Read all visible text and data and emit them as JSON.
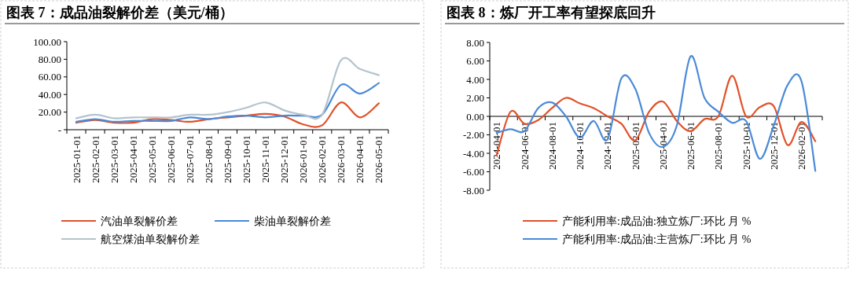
{
  "chart_data": [
    {
      "type": "line",
      "title": "图表 7：成品油裂解价差（美元/桶）",
      "categories": [
        "2025-01-01",
        "2025-02-01",
        "2025-03-01",
        "2025-04-01",
        "2025-05-01",
        "2025-06-01",
        "2025-07-01",
        "2025-08-01",
        "2025-09-01",
        "2025-10-01",
        "2025-11-01",
        "2025-12-01",
        "2026-01-01",
        "2026-02-01",
        "2026-03-01",
        "2026-04-01",
        "2026-05-01"
      ],
      "series": [
        {
          "name": "汽油单裂解价差",
          "color": "#e0522a",
          "values": [
            8,
            11,
            8,
            8,
            12,
            11,
            9,
            12,
            14,
            16,
            18,
            15,
            6,
            5,
            31,
            14,
            30
          ]
        },
        {
          "name": "柴油单裂解价差",
          "color": "#4a8ad8",
          "values": [
            9,
            12,
            9,
            10,
            10,
            10,
            14,
            12,
            15,
            16,
            14,
            16,
            16,
            17,
            51,
            41,
            53
          ]
        },
        {
          "name": "航空煤油单裂解价差",
          "color": "#b4c3cc",
          "values": [
            13,
            17,
            13,
            14,
            14,
            14,
            17,
            17,
            20,
            25,
            31,
            22,
            17,
            17,
            79,
            69,
            62
          ]
        }
      ],
      "ylim": [
        0,
        100
      ],
      "yticks": [
        {
          "value": 0,
          "label": "-"
        },
        {
          "value": 20,
          "label": "20.00"
        },
        {
          "value": 40,
          "label": "40.00"
        },
        {
          "value": 60,
          "label": "60.00"
        },
        {
          "value": 80,
          "label": "80.00"
        },
        {
          "value": 100,
          "label": "100.00"
        }
      ],
      "legend": "bottom",
      "grid": false
    },
    {
      "type": "line",
      "title": "图表 8：炼厂开工率有望探底回升",
      "categories": [
        "2024-04-01",
        null,
        "2024-06-01",
        null,
        "2024-08-01",
        null,
        "2024-10-01",
        null,
        "2024-12-01",
        null,
        "2025-02-01",
        null,
        "2025-04-01",
        null,
        "2025-06-01",
        null,
        "2025-08-01",
        null,
        "2025-10-01",
        null,
        "2025-12-01",
        null,
        "2026-02-01",
        null
      ],
      "series": [
        {
          "name": "产能利用率:成品油:独立炼厂:环比 月 %",
          "color": "#e0522a",
          "values": [
            -4.2,
            0.5,
            -0.8,
            -0.4,
            0.9,
            2.0,
            1.4,
            0.9,
            0.0,
            -0.8,
            -2.6,
            0.5,
            1.6,
            -0.5,
            -1.6,
            -0.3,
            0.0,
            4.4,
            0.0,
            1.0,
            1.1,
            -3.1,
            -0.6,
            -2.7
          ]
        },
        {
          "name": "产能利用率:成品油:主营炼厂:环比 月 %",
          "color": "#4a8ad8",
          "values": [
            -1.8,
            -1.4,
            -1.6,
            0.9,
            1.5,
            0.0,
            -2.3,
            -0.5,
            -2.5,
            4.1,
            3.0,
            -1.8,
            -3.3,
            -1.0,
            6.5,
            2.0,
            0.5,
            -0.7,
            -0.5,
            -4.6,
            -1.0,
            3.4,
            3.8,
            -5.9
          ]
        }
      ],
      "ylim": [
        -8,
        8
      ],
      "yticks": [
        {
          "value": -8,
          "label": "-8.00"
        },
        {
          "value": -6,
          "label": "-6.00"
        },
        {
          "value": -4,
          "label": "-4.00"
        },
        {
          "value": -2,
          "label": "-2.00"
        },
        {
          "value": 0,
          "label": "0.00"
        },
        {
          "value": 2,
          "label": "2.00"
        },
        {
          "value": 4,
          "label": "4.00"
        },
        {
          "value": 6,
          "label": "6.00"
        },
        {
          "value": 8,
          "label": "8.00"
        }
      ],
      "legend": "bottom",
      "grid": false
    }
  ]
}
